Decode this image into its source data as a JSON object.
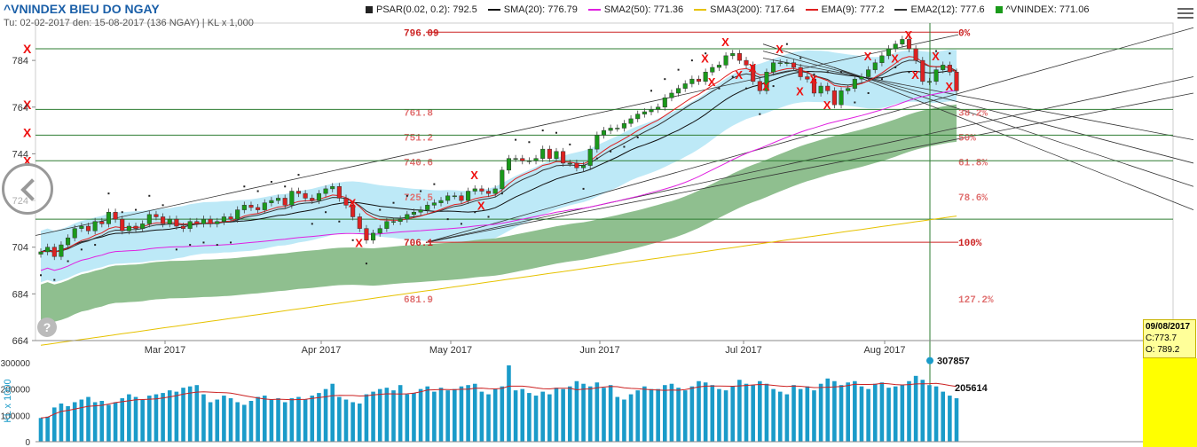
{
  "header": {
    "title": "^VNINDEX BIEU DO NGAY",
    "subtitle": "Tu: 02-02-2017 den: 15-08-2017 (136 NGAY) | KL x 1,000"
  },
  "legend": [
    {
      "label": "PSAR(0.02, 0.2): 792.5",
      "color": "#222222",
      "kind": "square"
    },
    {
      "label": "SMA(20): 776.79",
      "color": "#111111",
      "kind": "line"
    },
    {
      "label": "SMA2(50): 771.36",
      "color": "#e020e0",
      "kind": "line"
    },
    {
      "label": "SMA3(200): 717.64",
      "color": "#e6c200",
      "kind": "line"
    },
    {
      "label": "EMA(9): 777.2",
      "color": "#e02020",
      "kind": "line"
    },
    {
      "label": "EMA2(12): 777.6",
      "color": "#333333",
      "kind": "line"
    },
    {
      "label": "^VNINDEX: 771.06",
      "color": "#1a9a1a",
      "kind": "square"
    }
  ],
  "tooltip": {
    "date": "09/08/2017",
    "close": "C:773.7",
    "open": "O: 789.2"
  },
  "chart_data": {
    "type": "candlestick",
    "xlabel": "",
    "ylabel": "",
    "ylim": [
      664,
      800
    ],
    "yticks": [
      664,
      684,
      704,
      724,
      744,
      764,
      784
    ],
    "month_labels": [
      "Mar 2017",
      "Apr 2017",
      "May 2017",
      "Jun 2017",
      "Jul 2017",
      "Aug 2017"
    ],
    "fibonacci": [
      {
        "value": 796.09,
        "label": "796.09",
        "pct": "0%"
      },
      {
        "value": 761.8,
        "label": "761.8",
        "pct": "38.2%"
      },
      {
        "value": 751.2,
        "label": "751.2",
        "pct": "50%"
      },
      {
        "value": 740.6,
        "label": "740.6",
        "pct": "61.8%"
      },
      {
        "value": 725.5,
        "label": "725.5",
        "pct": "78.6%"
      },
      {
        "value": 706.1,
        "label": "706.1",
        "pct": "100%"
      },
      {
        "value": 681.9,
        "label": "681.9",
        "pct": "127.2%"
      }
    ],
    "horizontal_levels": [
      789,
      763,
      752,
      741,
      716
    ],
    "series": [
      {
        "name": "^VNINDEX",
        "closes": [
          702,
          704,
          700,
          705,
          708,
          712,
          713,
          711,
          715,
          714,
          719,
          716,
          711,
          713,
          712,
          714,
          718,
          717,
          714,
          716,
          713,
          712,
          715,
          714,
          716,
          714,
          715,
          717,
          716,
          720,
          722,
          721,
          720,
          723,
          724,
          725,
          722,
          728,
          727,
          725,
          724,
          727,
          729,
          730,
          725,
          722,
          717,
          712,
          707,
          710,
          712,
          715,
          715,
          716,
          718,
          719,
          720,
          722,
          723,
          724,
          726,
          726,
          724,
          728,
          729,
          728,
          727,
          729,
          737,
          742,
          742,
          741,
          741,
          742,
          746,
          742,
          745,
          740,
          740,
          738,
          739,
          746,
          752,
          754,
          755,
          755,
          757,
          759,
          761,
          762,
          763,
          764,
          768,
          770,
          772,
          774,
          776,
          775,
          779,
          781,
          782,
          786,
          787,
          784,
          782,
          775,
          771,
          779,
          783,
          783,
          783,
          781,
          777,
          776,
          770,
          773,
          771,
          765,
          771,
          772,
          776,
          777,
          780,
          783,
          786,
          789,
          791,
          793,
          789,
          784,
          775,
          775,
          780,
          782,
          779,
          771
        ]
      }
    ],
    "volume": {
      "ylabel": "KL x 1000",
      "yticks": [
        0,
        100000,
        200000,
        300000
      ],
      "annotations": [
        "307857",
        "205614"
      ],
      "values": [
        90,
        95,
        130,
        145,
        135,
        150,
        160,
        170,
        150,
        155,
        140,
        150,
        165,
        180,
        170,
        160,
        175,
        180,
        185,
        195,
        190,
        205,
        210,
        215,
        180,
        150,
        160,
        175,
        165,
        150,
        140,
        155,
        170,
        175,
        160,
        165,
        150,
        165,
        170,
        160,
        175,
        185,
        200,
        220,
        170,
        160,
        150,
        145,
        180,
        190,
        200,
        205,
        195,
        215,
        180,
        185,
        200,
        210,
        190,
        205,
        195,
        200,
        210,
        215,
        220,
        190,
        180,
        200,
        210,
        290,
        195,
        200,
        185,
        175,
        190,
        180,
        205,
        200,
        210,
        230,
        220,
        210,
        225,
        205,
        215,
        170,
        160,
        180,
        195,
        210,
        200,
        200,
        215,
        220,
        205,
        195,
        210,
        230,
        225,
        215,
        200,
        195,
        210,
        235,
        220,
        215,
        230,
        220,
        200,
        190,
        180,
        215,
        200,
        210,
        195,
        220,
        240,
        230,
        215,
        225,
        230,
        210,
        200,
        220,
        225,
        205,
        210,
        215,
        230,
        250,
        235,
        215,
        210,
        190,
        175,
        165
      ]
    }
  }
}
